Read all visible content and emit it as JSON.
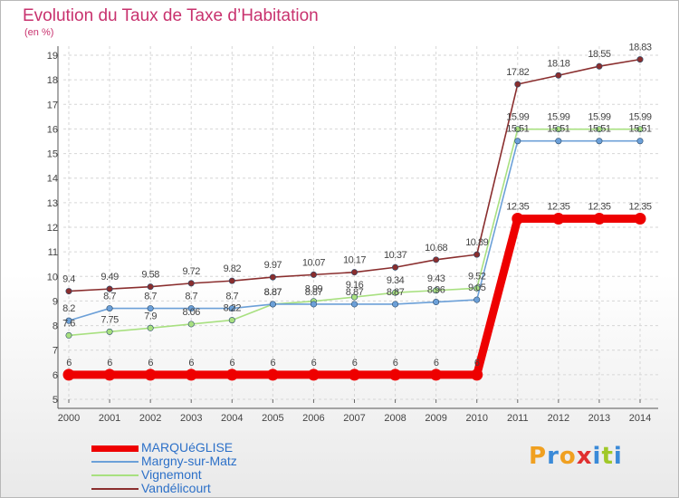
{
  "chart_data": {
    "type": "line",
    "title": "Evolution du Taux de Taxe d’Habitation",
    "ylabel": "(en %)",
    "xlabel": "",
    "ylim": [
      5,
      19
    ],
    "yticks": [
      5,
      6,
      7,
      8,
      9,
      10,
      11,
      12,
      13,
      14,
      15,
      16,
      17,
      18,
      19
    ],
    "grid": true,
    "legend_position": "bottom-left",
    "x": [
      "2000",
      "2001",
      "2002",
      "2003",
      "2004",
      "2005",
      "2006",
      "2007",
      "2008",
      "2009",
      "2010",
      "2011",
      "2012",
      "2013",
      "2014"
    ],
    "series": [
      {
        "name": "MARQUéGLISE",
        "color": "#ee0000",
        "values": [
          6,
          6,
          6,
          6,
          6,
          6,
          6,
          6,
          6,
          6,
          6,
          12.35,
          12.35,
          12.35,
          12.35
        ],
        "labels": [
          "6",
          "6",
          "6",
          "6",
          "6",
          "6",
          "6",
          "6",
          "6",
          "6",
          "6",
          "12.35",
          "12.35",
          "12.35",
          "12.35"
        ]
      },
      {
        "name": "Margny-sur-Matz",
        "color": "#6ca0d8",
        "values": [
          8.2,
          8.7,
          8.7,
          8.7,
          8.7,
          8.87,
          8.87,
          8.87,
          8.87,
          8.96,
          9.05,
          15.51,
          15.51,
          15.51,
          15.51
        ],
        "labels": [
          "8.2",
          "8.7",
          "8.7",
          "8.7",
          "8.7",
          "8.87",
          "8.87",
          "8.87",
          "8.87",
          "8.96",
          "9.05",
          "15.51",
          "15.51",
          "15.51",
          "15.51"
        ]
      },
      {
        "name": "Vignemont",
        "color": "#a8e080",
        "values": [
          7.6,
          7.75,
          7.9,
          8.06,
          8.22,
          8.87,
          8.99,
          9.16,
          9.34,
          9.43,
          9.52,
          15.99,
          15.99,
          15.99,
          15.99
        ],
        "labels": [
          "7.6",
          "7.75",
          "7.9",
          "8.06",
          "8.22",
          "8.87",
          "8.99",
          "9.16",
          "9.34",
          "9.43",
          "9.52",
          "15.99",
          "15.99",
          "15.99",
          "15.99"
        ]
      },
      {
        "name": "Vandélicourt",
        "color": "#8a2e2e",
        "values": [
          9.4,
          9.49,
          9.58,
          9.72,
          9.82,
          9.97,
          10.07,
          10.17,
          10.37,
          10.68,
          10.89,
          17.82,
          18.18,
          18.55,
          18.83
        ],
        "labels": [
          "9.4",
          "9.49",
          "9.58",
          "9.72",
          "9.82",
          "9.97",
          "10.07",
          "10.17",
          "10.37",
          "10.68",
          "10.89",
          "17.82",
          "18.18",
          "18.55",
          "18.83"
        ]
      }
    ]
  },
  "legend": {
    "items": [
      "MARQUéGLISE",
      "Margny-sur-Matz",
      "Vignemont",
      "Vandélicourt"
    ]
  },
  "logo": {
    "text": "Proxiti",
    "letter_colors": [
      "#f0a020",
      "#3a8ad8",
      "#f0a020",
      "#e03030",
      "#3a8ad8",
      "#a0c828",
      "#3a8ad8"
    ]
  }
}
